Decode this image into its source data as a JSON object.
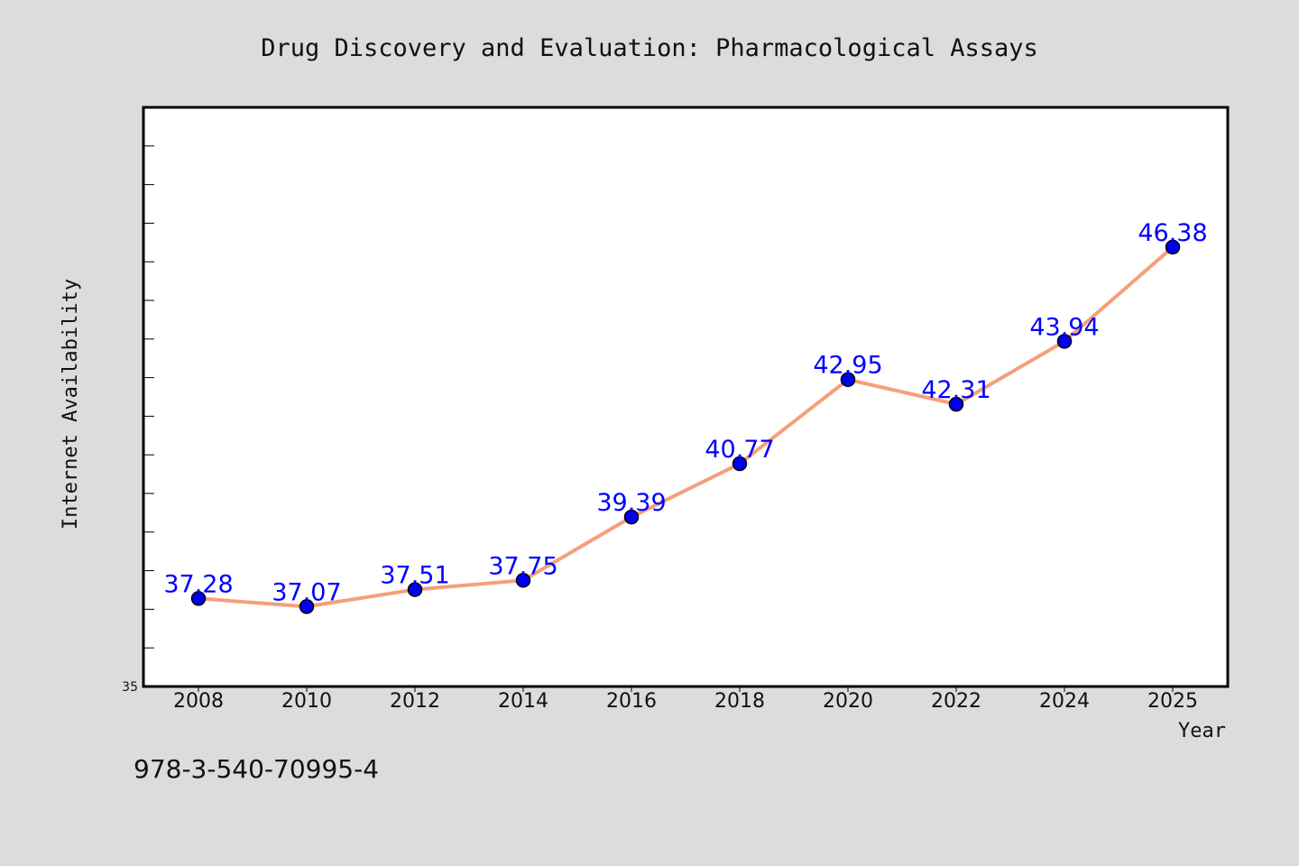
{
  "chart_data": {
    "type": "line",
    "title": "Drug Discovery and Evaluation: Pharmacological Assays",
    "xlabel": "Year",
    "ylabel": "Internet Availability",
    "categories": [
      "2008",
      "2010",
      "2012",
      "2014",
      "2016",
      "2018",
      "2020",
      "2022",
      "2024",
      "2025"
    ],
    "series": [
      {
        "values": [
          37.28,
          37.07,
          37.51,
          37.75,
          39.39,
          40.77,
          42.95,
          42.31,
          43.94,
          46.38
        ]
      }
    ],
    "data_labels": [
      "37.28",
      "37.07",
      "37.51",
      "37.75",
      "39.39",
      "40.77",
      "42.95",
      "42.31",
      "43.94",
      "46.38"
    ],
    "ylim": [
      35,
      50
    ],
    "y_tick_labels": [
      "35"
    ],
    "grid": false,
    "legend": "none",
    "colors": {
      "line": "#f4a07a",
      "marker": "#0000ee",
      "labels": "#0000ff",
      "background": "#dcdcdc",
      "plot_bg": "#ffffff"
    }
  },
  "footer": {
    "isbn": "978-3-540-70995-4"
  }
}
